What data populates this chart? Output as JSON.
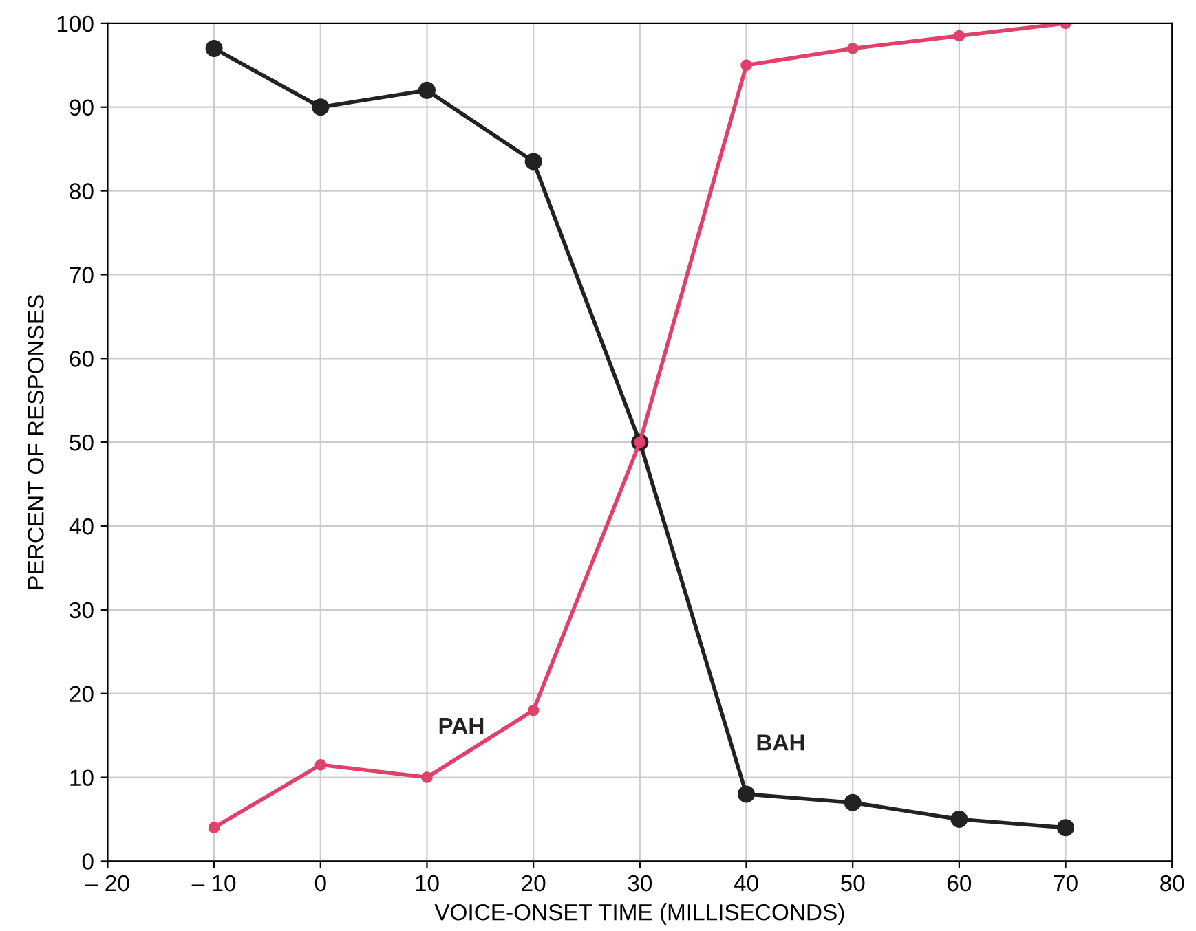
{
  "chart_data": {
    "type": "line",
    "xlabel": "VOICE-ONSET TIME (MILLISECONDS)",
    "ylabel": "PERCENT OF RESPONSES",
    "x": [
      -10,
      0,
      10,
      20,
      30,
      40,
      50,
      60,
      70
    ],
    "series": [
      {
        "name": "BAH",
        "color": "#222222",
        "values": [
          97,
          90,
          92,
          83.5,
          50,
          8,
          7,
          5,
          4
        ]
      },
      {
        "name": "PAH",
        "color": "#e0406a",
        "values": [
          4,
          11.5,
          10,
          18,
          50,
          95,
          97,
          98.5,
          100
        ]
      }
    ],
    "xlim": [
      -20,
      80
    ],
    "ylim": [
      0,
      100
    ],
    "xticks": [
      {
        "value": -20,
        "label": "– 20"
      },
      {
        "value": -10,
        "label": "– 10"
      },
      0,
      10,
      20,
      30,
      40,
      50,
      60,
      70,
      80
    ],
    "yticks": [
      0,
      10,
      20,
      30,
      40,
      50,
      60,
      70,
      80,
      90,
      100
    ],
    "grid": true,
    "marker": "circle",
    "line_style": "solid"
  }
}
